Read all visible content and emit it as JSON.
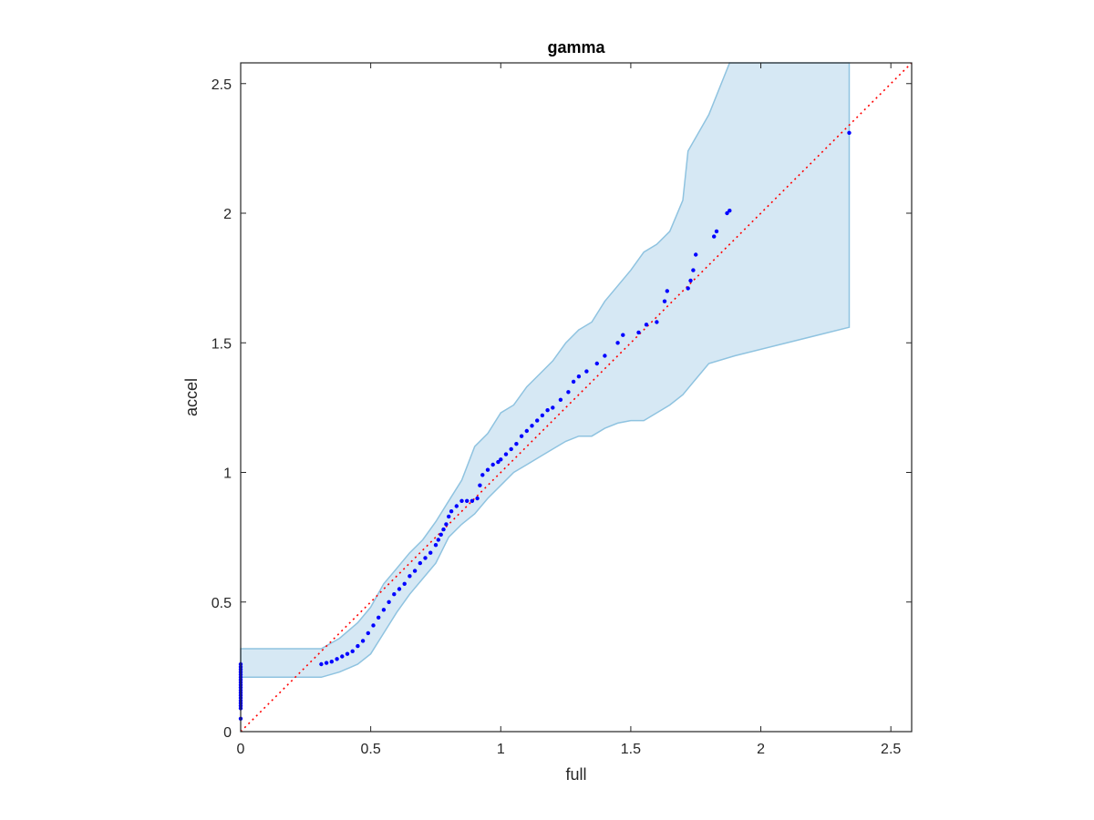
{
  "chart_data": {
    "type": "scatter",
    "title": "gamma",
    "xlabel": "full",
    "ylabel": "accel",
    "xlim": [
      0,
      2.58
    ],
    "ylim": [
      0,
      2.58
    ],
    "xticks": [
      "0",
      "0.5",
      "1",
      "1.5",
      "2",
      "2.5"
    ],
    "yticks": [
      "0",
      "0.5",
      "1",
      "1.5",
      "2",
      "2.5"
    ],
    "xtick_values": [
      0,
      0.5,
      1,
      1.5,
      2,
      2.5
    ],
    "ytick_values": [
      0,
      0.5,
      1,
      1.5,
      2,
      2.5
    ],
    "grid": false,
    "reference_line": {
      "from": [
        0,
        0
      ],
      "to": [
        2.58,
        2.58
      ],
      "style": "dotted",
      "color": "#ff0000"
    },
    "band": {
      "color": "#d6e8f4",
      "edge_color": "#8fc3e0",
      "upper": [
        [
          0,
          0.32
        ],
        [
          0.31,
          0.32
        ],
        [
          0.38,
          0.36
        ],
        [
          0.45,
          0.42
        ],
        [
          0.5,
          0.48
        ],
        [
          0.55,
          0.57
        ],
        [
          0.6,
          0.63
        ],
        [
          0.65,
          0.69
        ],
        [
          0.7,
          0.74
        ],
        [
          0.75,
          0.81
        ],
        [
          0.8,
          0.89
        ],
        [
          0.85,
          0.97
        ],
        [
          0.9,
          1.1
        ],
        [
          0.95,
          1.15
        ],
        [
          1.0,
          1.23
        ],
        [
          1.05,
          1.26
        ],
        [
          1.1,
          1.33
        ],
        [
          1.15,
          1.38
        ],
        [
          1.2,
          1.43
        ],
        [
          1.25,
          1.5
        ],
        [
          1.3,
          1.55
        ],
        [
          1.35,
          1.58
        ],
        [
          1.4,
          1.66
        ],
        [
          1.45,
          1.72
        ],
        [
          1.5,
          1.78
        ],
        [
          1.55,
          1.85
        ],
        [
          1.6,
          1.88
        ],
        [
          1.65,
          1.93
        ],
        [
          1.7,
          2.05
        ],
        [
          1.72,
          2.24
        ],
        [
          1.8,
          2.38
        ],
        [
          1.88,
          2.58
        ],
        [
          2.34,
          2.58
        ]
      ],
      "lower": [
        [
          0,
          0.21
        ],
        [
          0.31,
          0.21
        ],
        [
          0.38,
          0.23
        ],
        [
          0.45,
          0.26
        ],
        [
          0.5,
          0.3
        ],
        [
          0.55,
          0.38
        ],
        [
          0.6,
          0.46
        ],
        [
          0.65,
          0.53
        ],
        [
          0.7,
          0.59
        ],
        [
          0.75,
          0.65
        ],
        [
          0.8,
          0.75
        ],
        [
          0.85,
          0.8
        ],
        [
          0.9,
          0.84
        ],
        [
          0.95,
          0.9
        ],
        [
          1.0,
          0.95
        ],
        [
          1.05,
          1.0
        ],
        [
          1.1,
          1.03
        ],
        [
          1.15,
          1.06
        ],
        [
          1.2,
          1.09
        ],
        [
          1.25,
          1.12
        ],
        [
          1.3,
          1.14
        ],
        [
          1.35,
          1.14
        ],
        [
          1.4,
          1.17
        ],
        [
          1.45,
          1.19
        ],
        [
          1.5,
          1.2
        ],
        [
          1.55,
          1.2
        ],
        [
          1.6,
          1.23
        ],
        [
          1.65,
          1.26
        ],
        [
          1.7,
          1.3
        ],
        [
          1.75,
          1.36
        ],
        [
          1.8,
          1.42
        ],
        [
          1.9,
          1.45
        ],
        [
          2.34,
          1.56
        ]
      ]
    },
    "series": [
      {
        "color": "#0000ff",
        "points": [
          [
            0,
            0.05
          ],
          [
            0,
            0.09
          ],
          [
            0,
            0.1
          ],
          [
            0,
            0.11
          ],
          [
            0,
            0.12
          ],
          [
            0,
            0.13
          ],
          [
            0,
            0.14
          ],
          [
            0,
            0.15
          ],
          [
            0,
            0.16
          ],
          [
            0,
            0.17
          ],
          [
            0,
            0.18
          ],
          [
            0,
            0.19
          ],
          [
            0,
            0.2
          ],
          [
            0,
            0.21
          ],
          [
            0,
            0.22
          ],
          [
            0,
            0.23
          ],
          [
            0,
            0.24
          ],
          [
            0,
            0.25
          ],
          [
            0,
            0.26
          ],
          [
            0.31,
            0.26
          ],
          [
            0.33,
            0.265
          ],
          [
            0.35,
            0.27
          ],
          [
            0.37,
            0.28
          ],
          [
            0.39,
            0.29
          ],
          [
            0.41,
            0.3
          ],
          [
            0.43,
            0.31
          ],
          [
            0.45,
            0.33
          ],
          [
            0.47,
            0.35
          ],
          [
            0.49,
            0.38
          ],
          [
            0.51,
            0.41
          ],
          [
            0.53,
            0.44
          ],
          [
            0.55,
            0.47
          ],
          [
            0.57,
            0.5
          ],
          [
            0.59,
            0.53
          ],
          [
            0.61,
            0.55
          ],
          [
            0.63,
            0.57
          ],
          [
            0.65,
            0.6
          ],
          [
            0.67,
            0.62
          ],
          [
            0.69,
            0.65
          ],
          [
            0.71,
            0.67
          ],
          [
            0.73,
            0.69
          ],
          [
            0.75,
            0.72
          ],
          [
            0.76,
            0.74
          ],
          [
            0.77,
            0.76
          ],
          [
            0.78,
            0.78
          ],
          [
            0.79,
            0.8
          ],
          [
            0.8,
            0.83
          ],
          [
            0.81,
            0.85
          ],
          [
            0.83,
            0.87
          ],
          [
            0.85,
            0.89
          ],
          [
            0.87,
            0.89
          ],
          [
            0.89,
            0.89
          ],
          [
            0.91,
            0.9
          ],
          [
            0.92,
            0.95
          ],
          [
            0.93,
            0.99
          ],
          [
            0.95,
            1.01
          ],
          [
            0.97,
            1.03
          ],
          [
            0.99,
            1.04
          ],
          [
            1.0,
            1.05
          ],
          [
            1.02,
            1.07
          ],
          [
            1.04,
            1.09
          ],
          [
            1.06,
            1.11
          ],
          [
            1.08,
            1.14
          ],
          [
            1.1,
            1.16
          ],
          [
            1.12,
            1.18
          ],
          [
            1.14,
            1.2
          ],
          [
            1.16,
            1.22
          ],
          [
            1.18,
            1.24
          ],
          [
            1.2,
            1.25
          ],
          [
            1.23,
            1.28
          ],
          [
            1.26,
            1.31
          ],
          [
            1.28,
            1.35
          ],
          [
            1.3,
            1.37
          ],
          [
            1.33,
            1.39
          ],
          [
            1.37,
            1.42
          ],
          [
            1.4,
            1.45
          ],
          [
            1.45,
            1.5
          ],
          [
            1.47,
            1.53
          ],
          [
            1.53,
            1.54
          ],
          [
            1.56,
            1.57
          ],
          [
            1.6,
            1.58
          ],
          [
            1.63,
            1.66
          ],
          [
            1.64,
            1.7
          ],
          [
            1.72,
            1.71
          ],
          [
            1.73,
            1.74
          ],
          [
            1.74,
            1.78
          ],
          [
            1.75,
            1.84
          ],
          [
            1.82,
            1.91
          ],
          [
            1.83,
            1.93
          ],
          [
            1.87,
            2.0
          ],
          [
            1.88,
            2.01
          ],
          [
            2.34,
            2.31
          ]
        ]
      }
    ]
  }
}
